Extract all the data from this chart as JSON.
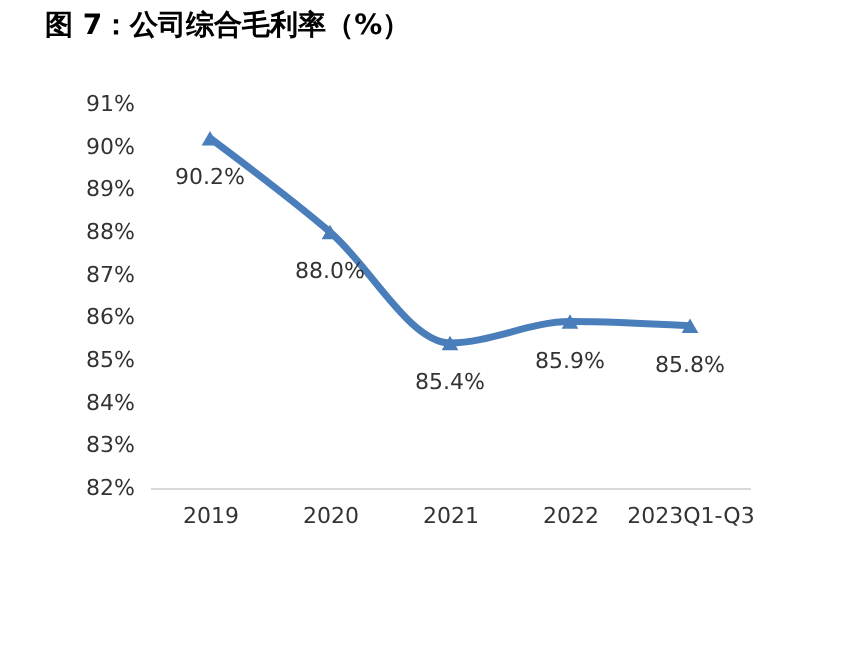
{
  "chart_data": {
    "type": "line",
    "title": "图 7：公司综合毛利率（%）",
    "categories": [
      "2019",
      "2020",
      "2021",
      "2022",
      "2023Q1-Q3"
    ],
    "series": [
      {
        "color": "#4a7ebb",
        "values": [
          90.2,
          88.0,
          85.4,
          85.9,
          85.8
        ],
        "value_labels": [
          "90.2%",
          "88.0%",
          "85.4%",
          "85.9%",
          "85.8%"
        ]
      }
    ],
    "ylim": [
      82,
      91
    ],
    "yticks": [
      {
        "value": 82,
        "label": "82%"
      },
      {
        "value": 83,
        "label": "83%"
      },
      {
        "value": 84,
        "label": "84%"
      },
      {
        "value": 85,
        "label": "85%"
      },
      {
        "value": 86,
        "label": "86%"
      },
      {
        "value": 87,
        "label": "87%"
      },
      {
        "value": 88,
        "label": "88%"
      },
      {
        "value": 89,
        "label": "89%"
      },
      {
        "value": 90,
        "label": "90%"
      },
      {
        "value": 91,
        "label": "91%"
      }
    ],
    "marker": "triangle",
    "grid": false
  }
}
